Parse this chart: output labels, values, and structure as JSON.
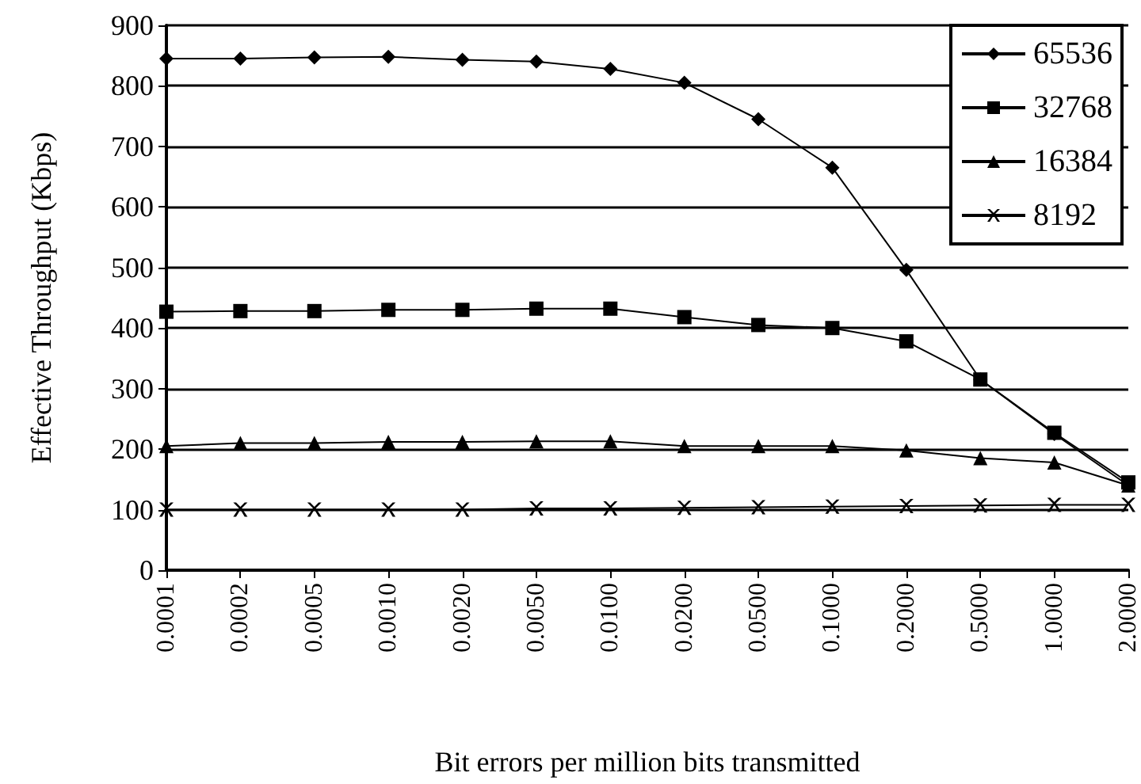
{
  "chart_data": {
    "type": "line",
    "xlabel": "Bit errors per million bits transmitted",
    "ylabel": "Effective Throughput (Kbps)",
    "categories": [
      "0.0001",
      "0.0002",
      "0.0005",
      "0.0010",
      "0.0020",
      "0.0050",
      "0.0100",
      "0.0200",
      "0.0500",
      "0.1000",
      "0.2000",
      "0.5000",
      "1.0000",
      "2.0000"
    ],
    "series": [
      {
        "name": "65536",
        "color": "#000000",
        "marker": "diamond",
        "values": [
          845,
          845,
          847,
          848,
          843,
          840,
          828,
          805,
          745,
          665,
          496,
          315,
          225,
          140
        ]
      },
      {
        "name": "32768",
        "color": "#000000",
        "marker": "square",
        "values": [
          427,
          428,
          428,
          430,
          430,
          432,
          432,
          418,
          405,
          400,
          378,
          315,
          227,
          145
        ]
      },
      {
        "name": "16384",
        "color": "#000000",
        "marker": "triangle",
        "values": [
          205,
          210,
          210,
          212,
          212,
          213,
          213,
          205,
          205,
          205,
          198,
          185,
          178,
          140
        ]
      },
      {
        "name": "8192",
        "color": "#000000",
        "marker": "cross",
        "values": [
          100,
          100,
          100,
          100,
          100,
          102,
          102,
          103,
          104,
          105,
          106,
          107,
          108,
          108
        ]
      }
    ],
    "ylim": [
      0,
      900
    ],
    "yticks": [
      0,
      100,
      200,
      300,
      400,
      500,
      600,
      700,
      800,
      900
    ],
    "grid": "y",
    "legend": "top right",
    "line_style": "solid"
  }
}
